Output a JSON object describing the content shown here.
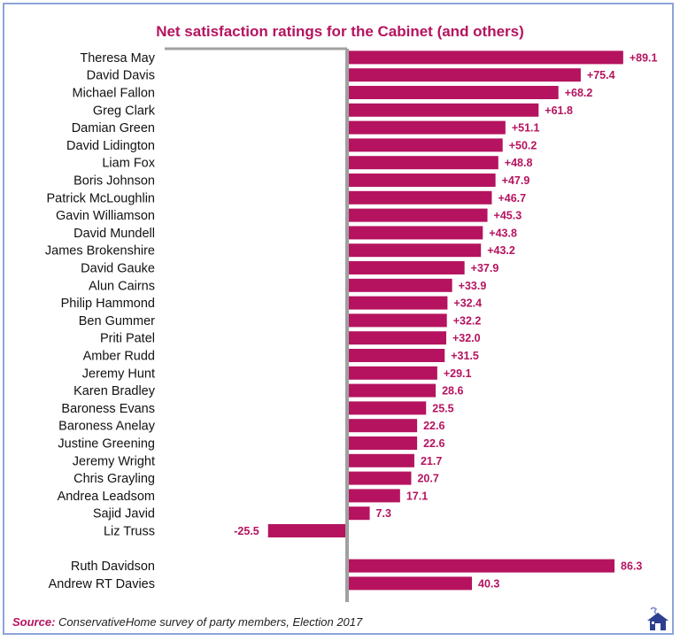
{
  "chart_data": {
    "type": "bar",
    "orientation": "horizontal",
    "title": "Net satisfaction ratings for the Cabinet (and others)",
    "xlim": [
      -30,
      90
    ],
    "grid": false,
    "bar_color": "#b5135f",
    "label_color": "#b5135f",
    "rows": [
      {
        "name": "Theresa May",
        "value": 89.1,
        "label": "+89.1"
      },
      {
        "name": "David Davis",
        "value": 75.4,
        "label": "+75.4"
      },
      {
        "name": "Michael Fallon",
        "value": 68.2,
        "label": "+68.2"
      },
      {
        "name": "Greg Clark",
        "value": 61.8,
        "label": "+61.8"
      },
      {
        "name": "Damian Green",
        "value": 51.1,
        "label": "+51.1"
      },
      {
        "name": "David Lidington",
        "value": 50.2,
        "label": "+50.2"
      },
      {
        "name": "Liam Fox",
        "value": 48.8,
        "label": "+48.8"
      },
      {
        "name": "Boris Johnson",
        "value": 47.9,
        "label": "+47.9"
      },
      {
        "name": "Patrick McLoughlin",
        "value": 46.7,
        "label": "+46.7"
      },
      {
        "name": "Gavin Williamson",
        "value": 45.3,
        "label": "+45.3"
      },
      {
        "name": "David Mundell",
        "value": 43.8,
        "label": "+43.8"
      },
      {
        "name": "James Brokenshire",
        "value": 43.2,
        "label": "+43.2"
      },
      {
        "name": "David Gauke",
        "value": 37.9,
        "label": "+37.9"
      },
      {
        "name": "Alun Cairns",
        "value": 33.9,
        "label": "+33.9"
      },
      {
        "name": "Philip Hammond",
        "value": 32.4,
        "label": "+32.4"
      },
      {
        "name": "Ben Gummer",
        "value": 32.2,
        "label": "+32.2"
      },
      {
        "name": "Priti Patel",
        "value": 32.0,
        "label": "+32.0"
      },
      {
        "name": "Amber Rudd",
        "value": 31.5,
        "label": "+31.5"
      },
      {
        "name": "Jeremy Hunt",
        "value": 29.1,
        "label": "+29.1"
      },
      {
        "name": "Karen Bradley",
        "value": 28.6,
        "label": "28.6"
      },
      {
        "name": "Baroness Evans",
        "value": 25.5,
        "label": "25.5"
      },
      {
        "name": "Baroness Anelay",
        "value": 22.6,
        "label": "22.6"
      },
      {
        "name": "Justine Greening",
        "value": 22.6,
        "label": "22.6"
      },
      {
        "name": "Jeremy Wright",
        "value": 21.7,
        "label": "21.7"
      },
      {
        "name": "Chris Grayling",
        "value": 20.7,
        "label": "20.7"
      },
      {
        "name": "Andrea Leadsom",
        "value": 17.1,
        "label": "17.1"
      },
      {
        "name": "Sajid Javid",
        "value": 7.3,
        "label": "7.3"
      },
      {
        "name": "Liz Truss",
        "value": -25.5,
        "label": "-25.5"
      },
      {
        "name": "",
        "value": null,
        "label": ""
      },
      {
        "name": "Ruth Davidson",
        "value": 86.3,
        "label": "86.3"
      },
      {
        "name": "Andrew RT Davies",
        "value": 40.3,
        "label": "40.3"
      }
    ]
  },
  "source": {
    "label": "Source:",
    "text": "ConservativeHome survey of party members, Election 2017"
  },
  "logo_icon": "house-logo-icon"
}
